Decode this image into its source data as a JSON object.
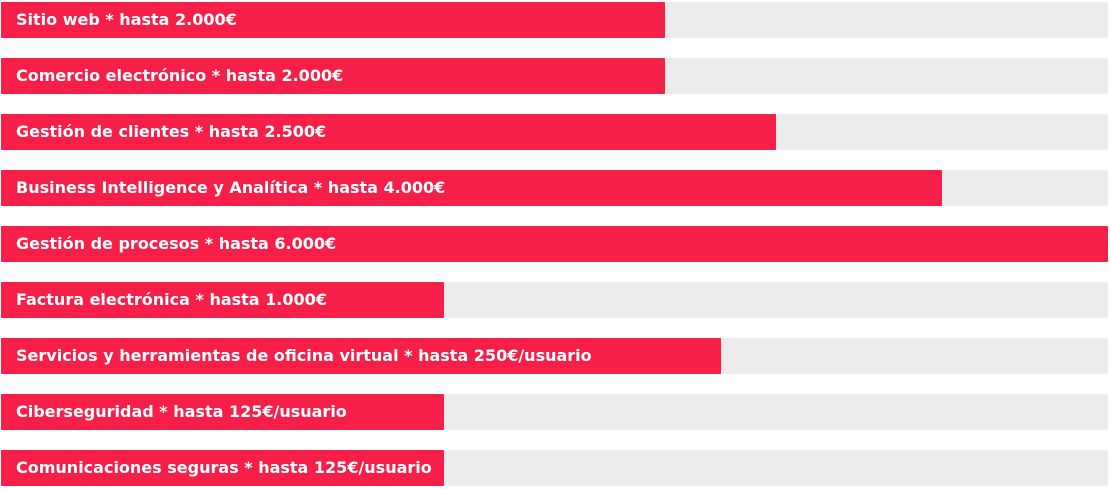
{
  "chart_data": {
    "type": "bar",
    "orientation": "horizontal",
    "bar_color": "#f51f48",
    "track_color": "#ececec",
    "label_color": "#ffffff",
    "items": [
      {
        "label": "Sitio web * hasta 2.000€",
        "fill_percent": 60
      },
      {
        "label": "Comercio electrónico * hasta 2.000€",
        "fill_percent": 60
      },
      {
        "label": "Gestión de clientes * hasta 2.500€",
        "fill_percent": 70
      },
      {
        "label": "Business Intelligence y Analítica * hasta 4.000€",
        "fill_percent": 85
      },
      {
        "label": "Gestión de procesos * hasta 6.000€",
        "fill_percent": 100
      },
      {
        "label": "Factura electrónica * hasta 1.000€",
        "fill_percent": 40
      },
      {
        "label": "Servicios y herramientas de oficina virtual * hasta 250€/usuario",
        "fill_percent": 65
      },
      {
        "label": "Ciberseguridad * hasta 125€/usuario",
        "fill_percent": 40
      },
      {
        "label": "Comunicaciones seguras * hasta 125€/usuario",
        "fill_percent": 40
      }
    ]
  }
}
